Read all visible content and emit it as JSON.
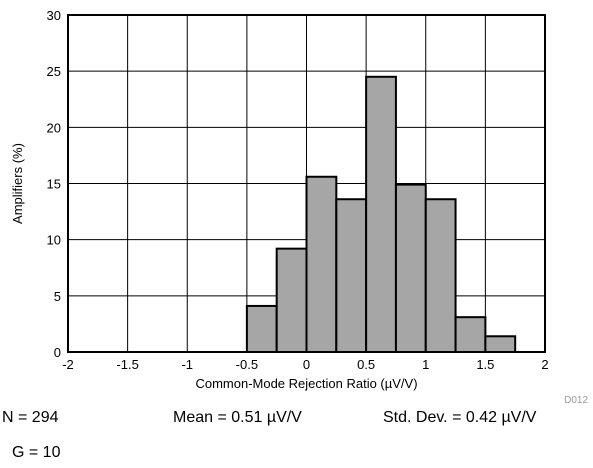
{
  "chart_data": {
    "type": "bar",
    "title": "",
    "xlabel": "Common-Mode Rejection Ratio (µV/V)",
    "ylabel": "Amplifiers (%)",
    "xlim": [
      -2,
      2
    ],
    "ylim": [
      0,
      30
    ],
    "xticks": [
      "-2",
      "-1.5",
      "-1",
      "-0.5",
      "0",
      "0.5",
      "1",
      "1.5",
      "2"
    ],
    "yticks": [
      "0",
      "5",
      "10",
      "15",
      "20",
      "25",
      "30"
    ],
    "bin_width": 0.25,
    "bins": [
      {
        "left": -0.5,
        "value": 4.1
      },
      {
        "left": -0.25,
        "value": 9.2
      },
      {
        "left": 0.0,
        "value": 15.6
      },
      {
        "left": 0.25,
        "value": 13.6
      },
      {
        "left": 0.5,
        "value": 24.5
      },
      {
        "left": 0.75,
        "value": 14.9
      },
      {
        "left": 1.0,
        "value": 13.6
      },
      {
        "left": 1.25,
        "value": 3.1
      },
      {
        "left": 1.5,
        "value": 1.4
      }
    ],
    "grid": true,
    "bar_color": "#a6a6a6",
    "figure_code": "D012"
  },
  "stats": {
    "n": "N = 294",
    "mean": "Mean = 0.51 µV/V",
    "std": "Std. Dev. = 0.42 µV/V",
    "gain": "G = 10"
  }
}
